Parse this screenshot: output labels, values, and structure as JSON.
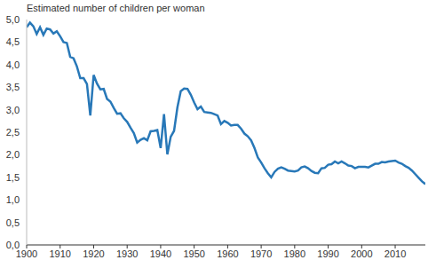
{
  "chart_data": {
    "type": "line",
    "title": "Estimated number of children per woman",
    "x": [
      1900,
      1901,
      1902,
      1903,
      1904,
      1905,
      1906,
      1907,
      1908,
      1909,
      1910,
      1911,
      1912,
      1913,
      1914,
      1915,
      1916,
      1917,
      1918,
      1919,
      1920,
      1921,
      1922,
      1923,
      1924,
      1925,
      1926,
      1927,
      1928,
      1929,
      1930,
      1931,
      1932,
      1933,
      1934,
      1935,
      1936,
      1937,
      1938,
      1939,
      1940,
      1941,
      1942,
      1943,
      1944,
      1945,
      1946,
      1947,
      1948,
      1949,
      1950,
      1951,
      1952,
      1953,
      1954,
      1955,
      1956,
      1957,
      1958,
      1959,
      1960,
      1961,
      1962,
      1963,
      1964,
      1965,
      1966,
      1967,
      1968,
      1969,
      1970,
      1971,
      1972,
      1973,
      1974,
      1975,
      1976,
      1977,
      1978,
      1979,
      1980,
      1981,
      1982,
      1983,
      1984,
      1985,
      1986,
      1987,
      1988,
      1989,
      1990,
      1991,
      1992,
      1993,
      1994,
      1995,
      1996,
      1997,
      1998,
      1999,
      2000,
      2001,
      2002,
      2003,
      2004,
      2005,
      2006,
      2007,
      2008,
      2009,
      2010,
      2011,
      2012,
      2013,
      2014,
      2015,
      2016,
      2017,
      2018,
      2019
    ],
    "values": [
      4.83,
      4.93,
      4.85,
      4.68,
      4.83,
      4.66,
      4.8,
      4.78,
      4.69,
      4.74,
      4.63,
      4.5,
      4.48,
      4.17,
      4.14,
      3.96,
      3.7,
      3.7,
      3.57,
      2.87,
      3.77,
      3.58,
      3.45,
      3.46,
      3.24,
      3.18,
      3.04,
      2.91,
      2.92,
      2.81,
      2.73,
      2.6,
      2.48,
      2.27,
      2.33,
      2.37,
      2.32,
      2.52,
      2.53,
      2.55,
      2.15,
      2.9,
      2.01,
      2.4,
      2.53,
      3.05,
      3.41,
      3.47,
      3.46,
      3.33,
      3.16,
      3.01,
      3.07,
      2.95,
      2.94,
      2.93,
      2.9,
      2.87,
      2.68,
      2.75,
      2.71,
      2.65,
      2.66,
      2.66,
      2.58,
      2.47,
      2.41,
      2.32,
      2.15,
      1.94,
      1.83,
      1.7,
      1.59,
      1.5,
      1.62,
      1.69,
      1.72,
      1.69,
      1.65,
      1.64,
      1.63,
      1.65,
      1.72,
      1.74,
      1.7,
      1.64,
      1.6,
      1.59,
      1.7,
      1.71,
      1.78,
      1.79,
      1.85,
      1.81,
      1.85,
      1.81,
      1.76,
      1.75,
      1.7,
      1.73,
      1.73,
      1.73,
      1.72,
      1.76,
      1.8,
      1.8,
      1.84,
      1.83,
      1.85,
      1.86,
      1.87,
      1.83,
      1.8,
      1.75,
      1.71,
      1.65,
      1.57,
      1.49,
      1.41,
      1.35
    ],
    "color": "#2878b8",
    "xlim": [
      1900,
      2019
    ],
    "xticks": [
      1900,
      1910,
      1920,
      1930,
      1940,
      1950,
      1960,
      1970,
      1980,
      1990,
      2000,
      2010
    ],
    "ylim": [
      0,
      5
    ],
    "yticks": [
      {
        "value": 0,
        "label": "0,0"
      },
      {
        "value": 0.5,
        "label": "0,5"
      },
      {
        "value": 1,
        "label": "1,0"
      },
      {
        "value": 1.5,
        "label": "1,5"
      },
      {
        "value": 2,
        "label": "2,0"
      },
      {
        "value": 2.5,
        "label": "2,5"
      },
      {
        "value": 3,
        "label": "3,0"
      },
      {
        "value": 3.5,
        "label": "3,5"
      },
      {
        "value": 4,
        "label": "4,0"
      },
      {
        "value": 4.5,
        "label": "4,5"
      },
      {
        "value": 5,
        "label": "5,0"
      }
    ],
    "grid": false
  }
}
